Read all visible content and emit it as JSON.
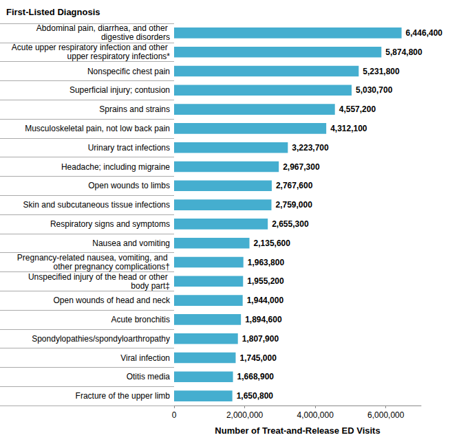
{
  "chart_data": {
    "type": "bar",
    "orientation": "horizontal",
    "ylabel": "First-Listed Diagnosis",
    "xlabel": "Number of Treat-and-Release ED Visits",
    "categories": [
      "Abdominal pain, diarrhea, and other digestive disorders",
      "Acute upper respiratory infection and other upper respiratory infections*",
      "Nonspecific chest pain",
      "Superficial injury; contusion",
      "Sprains and strains",
      "Musculoskeletal pain, not low back pain",
      "Urinary tract infections",
      "Headache; including migraine",
      "Open wounds to limbs",
      "Skin and subcutaneous tissue infections",
      "Respiratory signs and symptoms",
      "Nausea and vomiting",
      "Pregnancy-related nausea, vomiting, and other pregnancy complications†",
      "Unspecified injury of the head or other body part‡",
      "Open wounds of head and neck",
      "Acute bronchitis",
      "Spondylopathies/spondyloarthropathy",
      "Viral infection",
      "Otitis media",
      "Fracture of the upper limb"
    ],
    "values": [
      6446400,
      5874800,
      5231800,
      5030700,
      4557200,
      4312100,
      3223700,
      2967300,
      2767600,
      2759000,
      2655300,
      2135600,
      1963800,
      1955200,
      1944000,
      1894600,
      1807900,
      1745000,
      1668900,
      1650800
    ],
    "value_labels": [
      "6,446,400",
      "5,874,800",
      "5,231,800",
      "5,030,700",
      "4,557,200",
      "4,312,100",
      "3,223,700",
      "2,967,300",
      "2,767,600",
      "2,759,000",
      "2,655,300",
      "2,135,600",
      "1,963,800",
      "1,955,200",
      "1,944,000",
      "1,894,600",
      "1,807,900",
      "1,745,000",
      "1,668,900",
      "1,650,800"
    ],
    "color": "#45aecf",
    "xlim": [
      0,
      7000000
    ],
    "xticks": [
      0,
      {
        "value": 2000000,
        "label": "2,000,000"
      },
      {
        "value": 4000000,
        "label": "4,000,000"
      },
      {
        "value": 6000000,
        "label": "6,000,000"
      }
    ],
    "grid": false,
    "data_labels": true
  }
}
